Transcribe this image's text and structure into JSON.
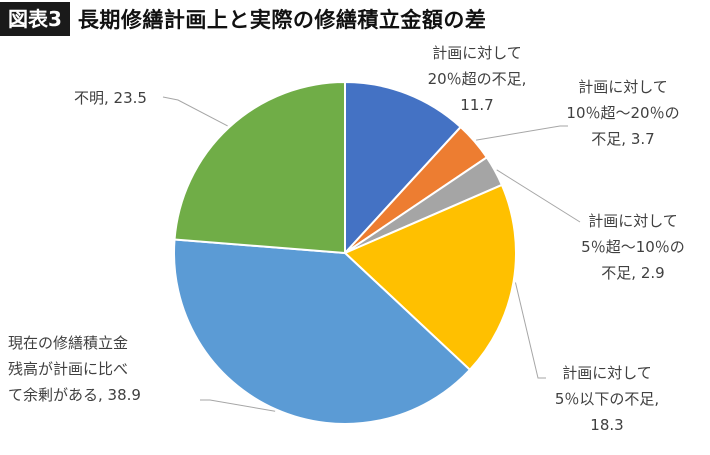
{
  "header": {
    "badge": "図表3",
    "title": "長期修繕計画上と実際の修繕積立金額の差"
  },
  "chart_data": {
    "type": "pie",
    "start_angle_deg": 0,
    "direction": "clockwise",
    "slices": [
      {
        "label_lines": [
          "計画に対して",
          "20％超の不足,",
          "11.7"
        ],
        "category": "計画に対して20％超の不足",
        "value": 11.7,
        "color": "#4472c4"
      },
      {
        "label_lines": [
          "計画に対して",
          "10％超～20％の",
          "不足, 3.7"
        ],
        "category": "計画に対して10％超～20％の不足",
        "value": 3.7,
        "color": "#ed7d31"
      },
      {
        "label_lines": [
          "計画に対して",
          "5％超～10％の",
          "不足, 2.9"
        ],
        "category": "計画に対して5％超～10％の不足",
        "value": 2.9,
        "color": "#a5a5a5"
      },
      {
        "label_lines": [
          "計画に対して",
          "5％以下の不足,",
          "18.3"
        ],
        "category": "計画に対して5％以下の不足",
        "value": 18.3,
        "color": "#ffc000"
      },
      {
        "label_lines": [
          "現在の修繕積立金",
          "残高が計画に比べ",
          "て余剰がある, 38.9"
        ],
        "category": "現在の修繕積立金残高が計画に比べて余剰がある",
        "value": 38.9,
        "color": "#5b9bd5"
      },
      {
        "label_lines": [
          "不明, 23.5"
        ],
        "category": "不明",
        "value": 23.5,
        "color": "#70ad47"
      }
    ]
  }
}
